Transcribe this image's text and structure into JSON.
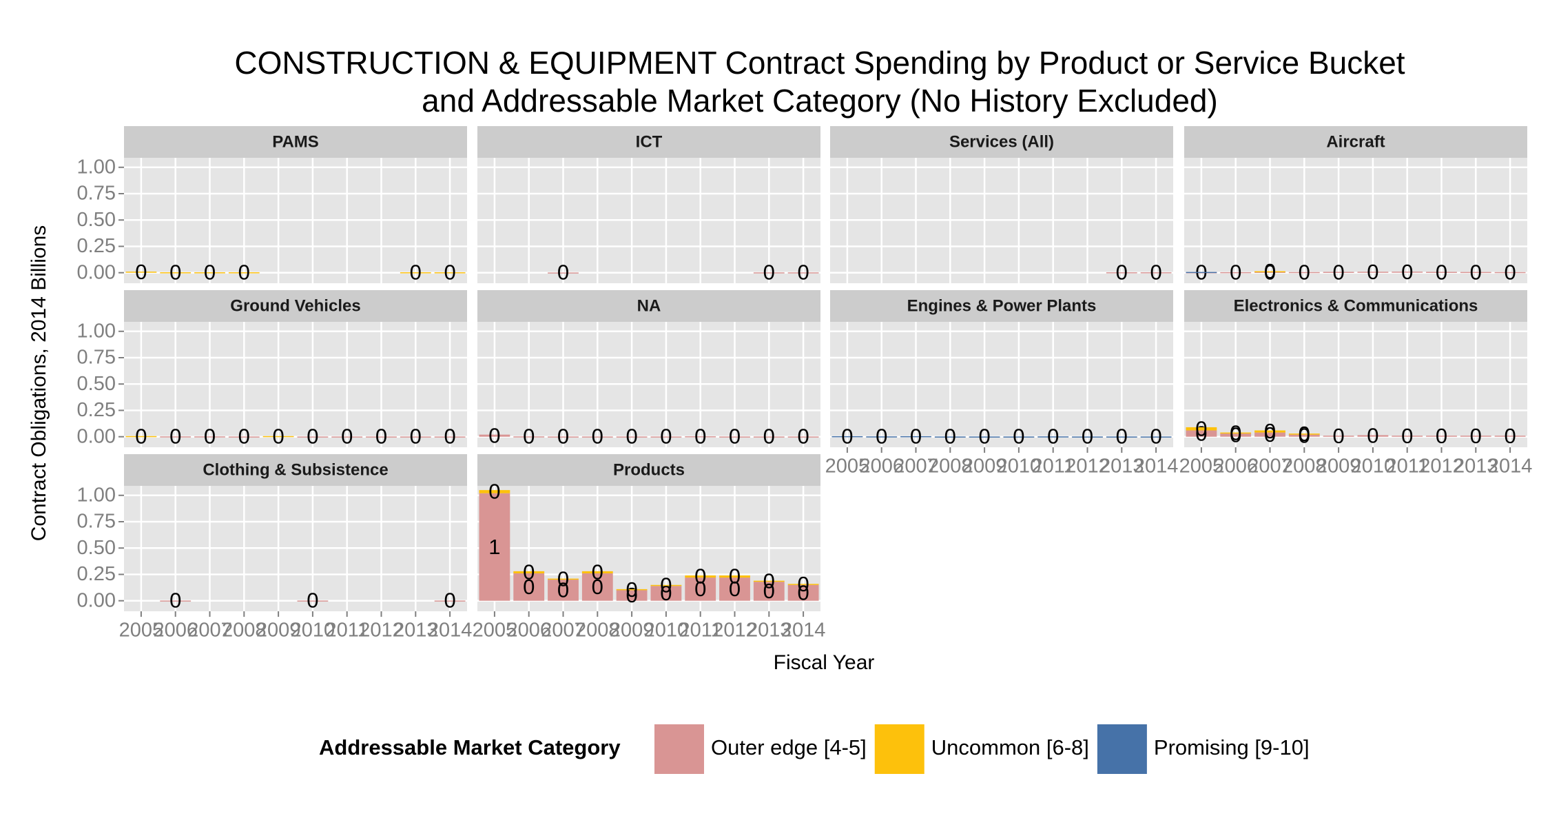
{
  "chart_data": {
    "title": "CONSTRUCTION & EQUIPMENT Contract Spending by Product or Service Bucket",
    "subtitle": "and Addressable Market Category (No History Excluded)",
    "x_label": "Fiscal Year",
    "y_label": "Contract Obligations, 2014 Billions",
    "categories": [
      "2005",
      "2006",
      "2007",
      "2008",
      "2009",
      "2010",
      "2011",
      "2012",
      "2013",
      "2014"
    ],
    "ylim": [
      -0.1,
      1.09
    ],
    "yticks": [
      {
        "value": 0,
        "label": "0.00"
      },
      {
        "value": 0.25,
        "label": "0.25"
      },
      {
        "value": 0.5,
        "label": "0.50"
      },
      {
        "value": 0.75,
        "label": "0.75"
      },
      {
        "value": 1,
        "label": "1.00"
      }
    ],
    "grid": true,
    "legend_title": "Addressable Market Category",
    "legend": [
      {
        "name": "Outer edge [4-5]",
        "color": "#d99594"
      },
      {
        "name": "Uncommon [6-8]",
        "color": "#fdc10c"
      },
      {
        "name": "Promising [9-10]",
        "color": "#4672a8"
      }
    ],
    "panels": [
      {
        "type": "bar",
        "title": "PAMS",
        "series": [
          {
            "values": [
              null,
              null,
              null,
              null,
              null,
              null,
              null,
              null,
              null,
              null
            ],
            "value_labels": [
              null,
              null,
              null,
              null,
              null,
              null,
              null,
              null,
              null,
              null
            ]
          },
          {
            "values": [
              0.01,
              0.004,
              0.004,
              0.004,
              null,
              null,
              null,
              null,
              0.004,
              0.004
            ],
            "value_labels": [
              "0",
              "0",
              "0",
              "0",
              null,
              null,
              null,
              null,
              "0",
              "0"
            ]
          },
          {
            "values": [
              null,
              null,
              null,
              null,
              null,
              null,
              null,
              null,
              null,
              null
            ],
            "value_labels": [
              null,
              null,
              null,
              null,
              null,
              null,
              null,
              null,
              null,
              null
            ]
          }
        ]
      },
      {
        "type": "bar",
        "title": "ICT",
        "series": [
          {
            "values": [
              null,
              null,
              0.002,
              null,
              null,
              null,
              null,
              null,
              0.003,
              0.003
            ],
            "value_labels": [
              null,
              null,
              "0",
              null,
              null,
              null,
              null,
              null,
              "0",
              "0"
            ]
          },
          {
            "values": [
              null,
              null,
              null,
              null,
              null,
              null,
              null,
              null,
              null,
              null
            ],
            "value_labels": [
              null,
              null,
              null,
              null,
              null,
              null,
              null,
              null,
              null,
              null
            ]
          },
          {
            "values": [
              null,
              null,
              null,
              null,
              null,
              null,
              null,
              null,
              null,
              null
            ],
            "value_labels": [
              null,
              null,
              null,
              null,
              null,
              null,
              null,
              null,
              null,
              null
            ]
          }
        ]
      },
      {
        "type": "bar",
        "title": "Services (All)",
        "series": [
          {
            "values": [
              null,
              null,
              null,
              null,
              null,
              null,
              null,
              null,
              0.004,
              0.004
            ],
            "value_labels": [
              null,
              null,
              null,
              null,
              null,
              null,
              null,
              null,
              "0",
              "0"
            ]
          },
          {
            "values": [
              null,
              null,
              null,
              null,
              null,
              null,
              null,
              null,
              null,
              null
            ],
            "value_labels": [
              null,
              null,
              null,
              null,
              null,
              null,
              null,
              null,
              null,
              null
            ]
          },
          {
            "values": [
              null,
              null,
              null,
              null,
              null,
              null,
              null,
              null,
              null,
              null
            ],
            "value_labels": [
              null,
              null,
              null,
              null,
              null,
              null,
              null,
              null,
              null,
              null
            ]
          }
        ]
      },
      {
        "type": "bar",
        "title": "Aircraft",
        "series": [
          {
            "values": [
              0.004,
              0.005,
              0.008,
              0.006,
              0.008,
              0.009,
              0.01,
              0.008,
              0.007,
              0.006
            ],
            "value_labels": [
              "0",
              "0",
              "0",
              "0",
              "0",
              "0",
              "0",
              "0",
              "0",
              "0"
            ]
          },
          {
            "values": [
              null,
              null,
              0.006,
              null,
              null,
              null,
              null,
              null,
              null,
              null
            ],
            "value_labels": [
              null,
              null,
              "0",
              null,
              null,
              null,
              null,
              null,
              null,
              null
            ]
          },
          {
            "values": [
              0.003,
              null,
              null,
              null,
              null,
              null,
              null,
              null,
              null,
              null
            ],
            "value_labels": [
              null,
              null,
              null,
              null,
              null,
              null,
              null,
              null,
              null,
              null
            ]
          }
        ]
      },
      {
        "type": "bar",
        "title": "Ground Vehicles",
        "series": [
          {
            "values": [
              null,
              0.003,
              0.003,
              0.002,
              null,
              0.002,
              0.002,
              0.002,
              0.002,
              0.002
            ],
            "value_labels": [
              null,
              "0",
              "0",
              "0",
              null,
              "0",
              "0",
              "0",
              "0",
              "0"
            ]
          },
          {
            "values": [
              0.006,
              null,
              null,
              null,
              0.006,
              null,
              null,
              null,
              null,
              null
            ],
            "value_labels": [
              "0",
              null,
              null,
              null,
              "0",
              null,
              null,
              null,
              null,
              null
            ]
          },
          {
            "values": [
              null,
              null,
              null,
              null,
              null,
              null,
              null,
              null,
              null,
              null
            ],
            "value_labels": [
              null,
              null,
              null,
              null,
              null,
              null,
              null,
              null,
              null,
              null
            ]
          }
        ]
      },
      {
        "type": "bar",
        "title": "NA",
        "series": [
          {
            "values": [
              0.02,
              0.003,
              0.002,
              0.002,
              0.002,
              0.002,
              0.004,
              0.002,
              0.002,
              0.002
            ],
            "value_labels": [
              "0",
              "0",
              "0",
              "0",
              "0",
              "0",
              "0",
              "0",
              "0",
              "0"
            ]
          },
          {
            "values": [
              null,
              null,
              null,
              null,
              null,
              null,
              null,
              null,
              null,
              null
            ],
            "value_labels": [
              null,
              null,
              null,
              null,
              null,
              null,
              null,
              null,
              null,
              null
            ]
          },
          {
            "values": [
              null,
              null,
              null,
              null,
              null,
              null,
              null,
              null,
              null,
              null
            ],
            "value_labels": [
              null,
              null,
              null,
              null,
              null,
              null,
              null,
              null,
              null,
              null
            ]
          }
        ]
      },
      {
        "type": "bar",
        "title": "Engines & Power Plants",
        "series": [
          {
            "values": [
              null,
              null,
              null,
              null,
              null,
              null,
              null,
              null,
              null,
              null
            ],
            "value_labels": [
              null,
              null,
              null,
              null,
              null,
              null,
              null,
              null,
              null,
              null
            ]
          },
          {
            "values": [
              null,
              null,
              null,
              null,
              null,
              null,
              null,
              null,
              null,
              null
            ],
            "value_labels": [
              null,
              null,
              null,
              null,
              null,
              null,
              null,
              null,
              null,
              null
            ]
          },
          {
            "values": [
              0.005,
              0.003,
              0.005,
              0.002,
              0.002,
              0.002,
              0.003,
              0.002,
              0.002,
              0.002
            ],
            "value_labels": [
              "0",
              "0",
              "0",
              "0",
              "0",
              "0",
              "0",
              "0",
              "0",
              "0"
            ]
          }
        ]
      },
      {
        "type": "bar",
        "title": "Electronics & Communications",
        "series": [
          {
            "values": [
              0.06,
              0.03,
              0.04,
              0.02,
              0.01,
              0.015,
              0.01,
              0.01,
              0.01,
              0.01
            ],
            "value_labels": [
              "0",
              "0",
              "0",
              "0",
              "0",
              "0",
              "0",
              "0",
              "0",
              "0"
            ]
          },
          {
            "values": [
              0.03,
              0.01,
              0.02,
              0.01,
              null,
              null,
              null,
              null,
              null,
              null
            ],
            "value_labels": [
              "0",
              "0",
              "0",
              "0",
              null,
              null,
              null,
              null,
              null,
              null
            ]
          },
          {
            "values": [
              null,
              null,
              null,
              null,
              null,
              null,
              null,
              null,
              null,
              null
            ],
            "value_labels": [
              null,
              null,
              null,
              null,
              null,
              null,
              null,
              null,
              null,
              null
            ]
          }
        ]
      },
      {
        "type": "bar",
        "title": "Clothing & Subsistence",
        "series": [
          {
            "values": [
              null,
              0.002,
              null,
              null,
              null,
              0.002,
              null,
              null,
              null,
              0.002
            ],
            "value_labels": [
              null,
              "0",
              null,
              null,
              null,
              "0",
              null,
              null,
              null,
              "0"
            ]
          },
          {
            "values": [
              null,
              null,
              null,
              null,
              null,
              null,
              null,
              null,
              null,
              null
            ],
            "value_labels": [
              null,
              null,
              null,
              null,
              null,
              null,
              null,
              null,
              null,
              null
            ]
          },
          {
            "values": [
              null,
              null,
              null,
              null,
              null,
              null,
              null,
              null,
              null,
              null
            ],
            "value_labels": [
              null,
              null,
              null,
              null,
              null,
              null,
              null,
              null,
              null,
              null
            ]
          }
        ]
      },
      {
        "type": "bar",
        "title": "Products",
        "series": [
          {
            "values": [
              1.02,
              0.26,
              0.2,
              0.26,
              0.1,
              0.14,
              0.22,
              0.22,
              0.18,
              0.15
            ],
            "value_labels": [
              "1",
              "0",
              "0",
              "0",
              "0",
              "0",
              "0",
              "0",
              "0",
              "0"
            ]
          },
          {
            "values": [
              0.03,
              0.02,
              0.01,
              0.02,
              0.01,
              0.01,
              0.02,
              0.02,
              0.01,
              0.01
            ],
            "value_labels": [
              "0",
              "0",
              "0",
              "0",
              "0",
              "0",
              "0",
              "0",
              "0",
              "0"
            ]
          },
          {
            "values": [
              null,
              null,
              null,
              null,
              null,
              null,
              null,
              null,
              null,
              null
            ],
            "value_labels": [
              null,
              null,
              null,
              null,
              null,
              null,
              null,
              null,
              null,
              null
            ]
          }
        ]
      }
    ]
  }
}
